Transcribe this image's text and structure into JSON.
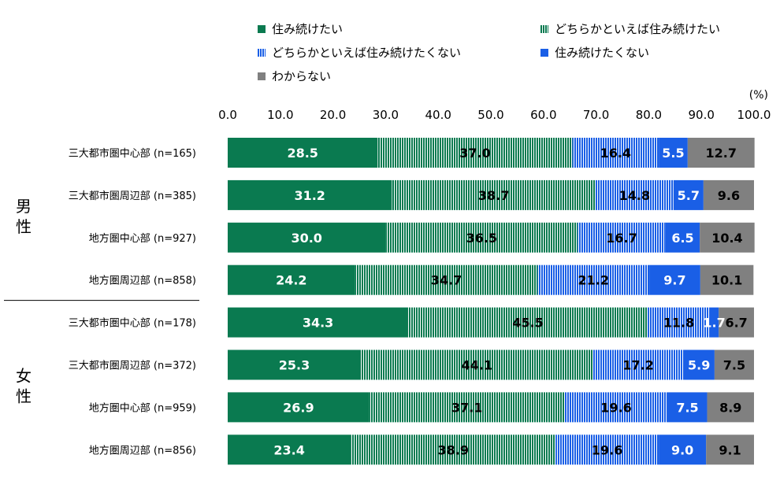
{
  "chart_data": {
    "type": "bar",
    "orientation": "horizontal",
    "stacked": true,
    "unit_label": "(%)",
    "xlim": [
      0,
      100
    ],
    "x_ticks": [
      "0.0",
      "10.0",
      "20.0",
      "30.0",
      "40.0",
      "50.0",
      "60.0",
      "70.0",
      "80.0",
      "90.0",
      "100.0"
    ],
    "groups": [
      {
        "label": "男性",
        "rows": [
          0,
          1,
          2,
          3
        ]
      },
      {
        "label": "女性",
        "rows": [
          4,
          5,
          6,
          7
        ]
      }
    ],
    "categories": [
      "三大都市圏中心部 (n=165)",
      "三大都市圏周辺部 (n=385)",
      "地方圏中心部 (n=927)",
      "地方圏周辺部 (n=858)",
      "三大都市圏中心部 (n=178)",
      "三大都市圏周辺部 (n=372)",
      "地方圏中心部 (n=959)",
      "地方圏周辺部 (n=856)"
    ],
    "series": [
      {
        "name": "住み続けたい",
        "color": "#0a7a50",
        "pattern": "solid",
        "label_color": "#ffffff",
        "values": [
          28.5,
          31.2,
          30.0,
          24.2,
          34.3,
          25.3,
          26.9,
          23.4
        ]
      },
      {
        "name": "どちらかといえば住み続けたい",
        "color": "#0a7a50",
        "pattern": "vertical-stripes",
        "label_color": "#000000",
        "values": [
          37.0,
          38.7,
          36.5,
          34.7,
          45.5,
          44.1,
          37.1,
          38.9
        ]
      },
      {
        "name": "どちらかといえば住み続けたくない",
        "color": "#1a5fe6",
        "pattern": "vertical-stripes",
        "label_color": "#000000",
        "values": [
          16.4,
          14.8,
          16.7,
          21.2,
          11.8,
          17.2,
          19.6,
          19.6
        ]
      },
      {
        "name": "住み続けたくない",
        "color": "#1a5fe6",
        "pattern": "solid",
        "label_color": "#ffffff",
        "values": [
          5.5,
          5.7,
          6.5,
          9.7,
          1.7,
          5.9,
          7.5,
          9.0
        ]
      },
      {
        "name": "わからない",
        "color": "#808080",
        "pattern": "solid",
        "label_color": "#000000",
        "values": [
          12.7,
          9.6,
          10.4,
          10.1,
          6.7,
          7.5,
          8.9,
          9.1
        ]
      }
    ],
    "legend_position": "top"
  }
}
